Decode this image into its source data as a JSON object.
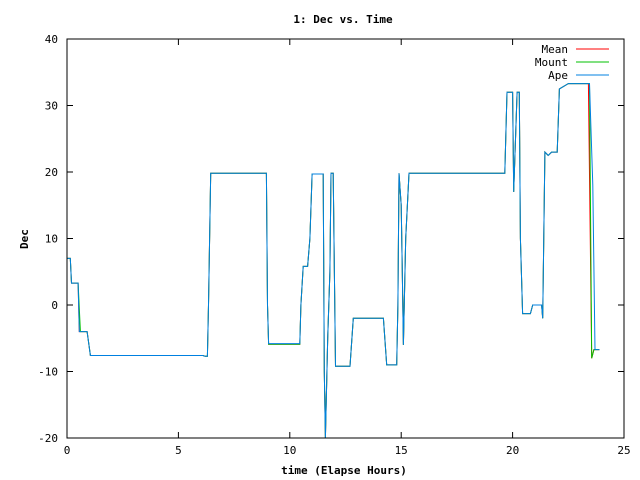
{
  "chart_data": {
    "type": "line",
    "title": "1: Dec vs. Time",
    "xlabel": "time (Elapse Hours)",
    "ylabel": "Dec",
    "xlim": [
      0,
      25
    ],
    "ylim": [
      -20,
      40
    ],
    "x_ticks": [
      "0",
      "5",
      "10",
      "15",
      "20",
      "25"
    ],
    "y_ticks": [
      "-20",
      "-10",
      "0",
      "10",
      "20",
      "30",
      "40"
    ],
    "grid": false,
    "legend_position": "top-right",
    "series": [
      {
        "name": "Mean",
        "color": "#ff0000",
        "points": [
          [
            0,
            7
          ],
          [
            0.15,
            7
          ],
          [
            0.2,
            3.3
          ],
          [
            0.5,
            3.3
          ],
          [
            0.55,
            -4
          ],
          [
            0.9,
            -4
          ],
          [
            1.05,
            -7.6
          ],
          [
            6.1,
            -7.6
          ],
          [
            6.2,
            -7.7
          ],
          [
            6.3,
            -7.7
          ],
          [
            6.35,
            0
          ],
          [
            6.45,
            19.8
          ],
          [
            8.95,
            19.8
          ],
          [
            9.0,
            0
          ],
          [
            9.05,
            -5.9
          ],
          [
            10.45,
            -5.9
          ],
          [
            10.5,
            0
          ],
          [
            10.6,
            5.8
          ],
          [
            10.8,
            5.8
          ],
          [
            10.9,
            10
          ],
          [
            11.0,
            19.7
          ],
          [
            11.5,
            19.7
          ],
          [
            11.55,
            -10
          ],
          [
            11.6,
            -20
          ],
          [
            11.7,
            -5
          ],
          [
            11.8,
            5
          ],
          [
            11.85,
            19.8
          ],
          [
            11.95,
            19.8
          ],
          [
            12.05,
            -9.2
          ],
          [
            12.7,
            -9.2
          ],
          [
            12.85,
            -2
          ],
          [
            14.2,
            -2
          ],
          [
            14.35,
            -9
          ],
          [
            14.8,
            -9
          ],
          [
            14.85,
            0
          ],
          [
            14.9,
            19.8
          ],
          [
            15.0,
            15
          ],
          [
            15.05,
            5
          ],
          [
            15.1,
            -6
          ],
          [
            15.2,
            10
          ],
          [
            15.35,
            19.8
          ],
          [
            19.65,
            19.8
          ],
          [
            19.75,
            32
          ],
          [
            20.0,
            32
          ],
          [
            20.05,
            17
          ],
          [
            20.2,
            32
          ],
          [
            20.3,
            32
          ],
          [
            20.35,
            10
          ],
          [
            20.45,
            -1.3
          ],
          [
            20.8,
            -1.3
          ],
          [
            20.9,
            0
          ],
          [
            21.3,
            0
          ],
          [
            21.35,
            -2
          ],
          [
            21.45,
            23
          ],
          [
            21.6,
            22.5
          ],
          [
            21.75,
            23
          ],
          [
            22.0,
            23
          ],
          [
            22.1,
            32.5
          ],
          [
            22.5,
            33.3
          ],
          [
            23.4,
            33.3
          ],
          [
            23.55,
            -8
          ],
          [
            23.65,
            -6.7
          ],
          [
            23.9,
            -6.7
          ]
        ]
      },
      {
        "name": "Mount",
        "color": "#00c000",
        "points": [
          [
            0,
            7
          ],
          [
            0.15,
            7
          ],
          [
            0.2,
            3.3
          ],
          [
            0.5,
            3.3
          ],
          [
            0.6,
            -4
          ],
          [
            0.9,
            -4
          ],
          [
            1.05,
            -7.6
          ],
          [
            6.1,
            -7.6
          ],
          [
            6.2,
            -7.7
          ],
          [
            6.3,
            -7.7
          ],
          [
            6.35,
            0
          ],
          [
            6.45,
            19.8
          ],
          [
            8.95,
            19.8
          ],
          [
            9.0,
            0
          ],
          [
            9.05,
            -5.9
          ],
          [
            10.45,
            -5.9
          ],
          [
            10.5,
            0
          ],
          [
            10.6,
            5.8
          ],
          [
            10.8,
            5.8
          ],
          [
            10.9,
            10
          ],
          [
            11.0,
            19.7
          ],
          [
            11.5,
            19.7
          ],
          [
            11.55,
            -10
          ],
          [
            11.6,
            -20
          ],
          [
            11.7,
            -5
          ],
          [
            11.8,
            5
          ],
          [
            11.85,
            19.8
          ],
          [
            11.95,
            19.8
          ],
          [
            12.05,
            -9.2
          ],
          [
            12.7,
            -9.2
          ],
          [
            12.85,
            -2
          ],
          [
            14.2,
            -2
          ],
          [
            14.35,
            -9
          ],
          [
            14.8,
            -9
          ],
          [
            14.85,
            0
          ],
          [
            14.9,
            19.8
          ],
          [
            15.0,
            15
          ],
          [
            15.05,
            5
          ],
          [
            15.1,
            -6
          ],
          [
            15.2,
            10
          ],
          [
            15.35,
            19.8
          ],
          [
            19.65,
            19.8
          ],
          [
            19.75,
            32
          ],
          [
            20.0,
            32
          ],
          [
            20.05,
            17
          ],
          [
            20.2,
            32
          ],
          [
            20.3,
            32
          ],
          [
            20.35,
            10
          ],
          [
            20.45,
            -1.3
          ],
          [
            20.8,
            -1.3
          ],
          [
            20.9,
            0
          ],
          [
            21.3,
            0
          ],
          [
            21.35,
            -2
          ],
          [
            21.45,
            23
          ],
          [
            21.6,
            22.5
          ],
          [
            21.75,
            23
          ],
          [
            22.0,
            23
          ],
          [
            22.1,
            32.5
          ],
          [
            22.5,
            33.3
          ],
          [
            23.45,
            33.3
          ],
          [
            23.55,
            -8
          ],
          [
            23.65,
            -6.7
          ],
          [
            23.9,
            -6.7
          ]
        ]
      },
      {
        "name": "Ape",
        "color": "#0080e0",
        "points": [
          [
            0,
            7
          ],
          [
            0.15,
            7
          ],
          [
            0.2,
            3.3
          ],
          [
            0.5,
            3.3
          ],
          [
            0.55,
            -4
          ],
          [
            0.9,
            -4
          ],
          [
            1.05,
            -7.6
          ],
          [
            6.1,
            -7.6
          ],
          [
            6.2,
            -7.7
          ],
          [
            6.3,
            -7.7
          ],
          [
            6.35,
            0
          ],
          [
            6.45,
            19.8
          ],
          [
            8.95,
            19.8
          ],
          [
            9.0,
            0
          ],
          [
            9.05,
            -5.8
          ],
          [
            10.45,
            -5.8
          ],
          [
            10.5,
            0
          ],
          [
            10.6,
            5.8
          ],
          [
            10.8,
            5.8
          ],
          [
            10.9,
            10
          ],
          [
            11.0,
            19.7
          ],
          [
            11.5,
            19.7
          ],
          [
            11.55,
            -10
          ],
          [
            11.6,
            -20
          ],
          [
            11.7,
            -5
          ],
          [
            11.8,
            5
          ],
          [
            11.85,
            19.8
          ],
          [
            11.95,
            19.8
          ],
          [
            12.05,
            -9.2
          ],
          [
            12.7,
            -9.2
          ],
          [
            12.85,
            -2
          ],
          [
            14.2,
            -2
          ],
          [
            14.35,
            -9
          ],
          [
            14.8,
            -9
          ],
          [
            14.85,
            0
          ],
          [
            14.9,
            19.8
          ],
          [
            15.0,
            15
          ],
          [
            15.05,
            5
          ],
          [
            15.1,
            -6
          ],
          [
            15.2,
            10
          ],
          [
            15.35,
            19.8
          ],
          [
            19.65,
            19.8
          ],
          [
            19.75,
            32
          ],
          [
            20.0,
            32
          ],
          [
            20.05,
            17
          ],
          [
            20.2,
            32
          ],
          [
            20.3,
            32
          ],
          [
            20.35,
            10
          ],
          [
            20.45,
            -1.3
          ],
          [
            20.8,
            -1.3
          ],
          [
            20.9,
            0
          ],
          [
            21.3,
            0
          ],
          [
            21.35,
            -2
          ],
          [
            21.45,
            23
          ],
          [
            21.6,
            22.5
          ],
          [
            21.75,
            23
          ],
          [
            22.0,
            23
          ],
          [
            22.1,
            32.5
          ],
          [
            22.5,
            33.3
          ],
          [
            23.45,
            33.3
          ],
          [
            23.6,
            18
          ],
          [
            23.7,
            -6.7
          ],
          [
            23.9,
            -6.7
          ]
        ]
      }
    ]
  }
}
